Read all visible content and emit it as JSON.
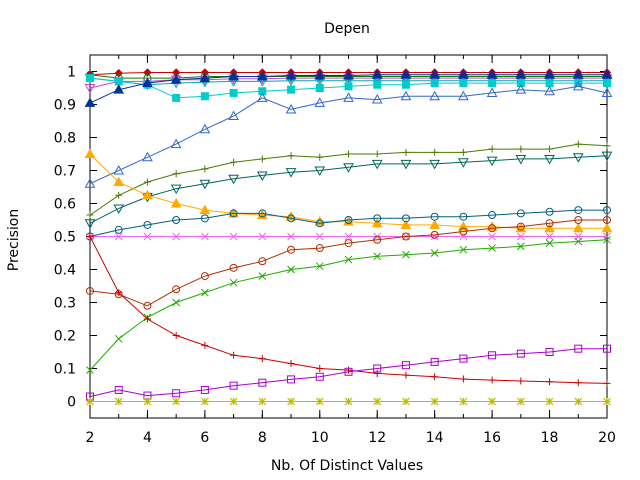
{
  "chart_data": {
    "type": "line",
    "title": "Depen",
    "xlabel": "Nb. Of Distinct Values",
    "ylabel": "Precision",
    "xlim": [
      2,
      20
    ],
    "ylim": [
      -0.05,
      1.05
    ],
    "grid": false,
    "legend": "none",
    "x": [
      2,
      3,
      4,
      5,
      6,
      7,
      8,
      9,
      10,
      11,
      12,
      13,
      14,
      15,
      16,
      17,
      18,
      19,
      20
    ],
    "xticks": [
      2,
      4,
      6,
      8,
      10,
      12,
      14,
      16,
      18,
      20
    ],
    "xtick_labels": [
      "2",
      "4",
      "6",
      "8",
      "10",
      "12",
      "14",
      "16",
      "18",
      "20"
    ],
    "yticks": [
      0,
      0.1,
      0.2,
      0.3,
      0.4,
      0.5,
      0.6,
      0.7,
      0.8,
      0.9,
      1
    ],
    "ytick_labels": [
      "0",
      "0.1",
      "0.2",
      "0.3",
      "0.4",
      "0.5",
      "0.6",
      "0.7",
      "0.8",
      "0.9",
      "1"
    ],
    "series": [
      {
        "color": "#cc0000",
        "marker": "diamond-filled",
        "values": [
          0.99,
          0.995,
          0.997,
          0.997,
          0.997,
          0.997,
          0.997,
          0.997,
          0.997,
          0.997,
          0.997,
          0.997,
          0.997,
          0.997,
          0.997,
          0.997,
          0.997,
          0.997,
          0.997
        ]
      },
      {
        "color": "#008000",
        "marker": "circle",
        "values": [
          0.99,
          0.98,
          0.98,
          0.98,
          0.985,
          0.985,
          0.985,
          0.985,
          0.985,
          0.985,
          0.985,
          0.985,
          0.985,
          0.985,
          0.985,
          0.985,
          0.985,
          0.985,
          0.985
        ]
      },
      {
        "color": "#cc44cc",
        "marker": "triangle-down",
        "values": [
          0.95,
          0.97,
          0.97,
          0.975,
          0.975,
          0.978,
          0.978,
          0.98,
          0.98,
          0.98,
          0.98,
          0.98,
          0.98,
          0.98,
          0.98,
          0.98,
          0.98,
          0.98,
          0.98
        ]
      },
      {
        "color": "#00aaaa",
        "marker": "triangle-down",
        "values": [
          0.98,
          0.97,
          0.96,
          0.965,
          0.968,
          0.97,
          0.97,
          0.972,
          0.972,
          0.972,
          0.972,
          0.972,
          0.972,
          0.972,
          0.972,
          0.972,
          0.972,
          0.972,
          0.972
        ]
      },
      {
        "color": "#00cccc",
        "marker": "square-filled",
        "values": [
          0.98,
          0.97,
          0.96,
          0.92,
          0.925,
          0.935,
          0.94,
          0.945,
          0.95,
          0.955,
          0.96,
          0.96,
          0.965,
          0.965,
          0.965,
          0.965,
          0.965,
          0.965,
          0.965
        ]
      },
      {
        "color": "#003399",
        "marker": "triangle-filled",
        "values": [
          0.905,
          0.945,
          0.965,
          0.975,
          0.98,
          0.985,
          0.985,
          0.988,
          0.988,
          0.988,
          0.99,
          0.99,
          0.99,
          0.99,
          0.99,
          0.99,
          0.99,
          0.99,
          0.99
        ]
      },
      {
        "color": "#3366cc",
        "marker": "triangle",
        "values": [
          0.66,
          0.7,
          0.74,
          0.78,
          0.825,
          0.865,
          0.92,
          0.885,
          0.905,
          0.92,
          0.915,
          0.925,
          0.925,
          0.925,
          0.935,
          0.945,
          0.94,
          0.955,
          0.935
        ]
      },
      {
        "color": "#4b7a00",
        "marker": "plus",
        "values": [
          0.565,
          0.625,
          0.665,
          0.69,
          0.705,
          0.725,
          0.735,
          0.745,
          0.74,
          0.75,
          0.75,
          0.755,
          0.755,
          0.755,
          0.765,
          0.765,
          0.765,
          0.78,
          0.775
        ]
      },
      {
        "color": "#00665a",
        "marker": "triangle-down",
        "values": [
          0.54,
          0.585,
          0.62,
          0.645,
          0.66,
          0.675,
          0.685,
          0.695,
          0.7,
          0.71,
          0.72,
          0.72,
          0.72,
          0.725,
          0.73,
          0.735,
          0.735,
          0.74,
          0.745
        ]
      },
      {
        "color": "#ffaa00",
        "marker": "triangle-filled",
        "values": [
          0.75,
          0.665,
          0.625,
          0.6,
          0.58,
          0.57,
          0.565,
          0.56,
          0.545,
          0.545,
          0.54,
          0.535,
          0.535,
          0.53,
          0.53,
          0.525,
          0.525,
          0.525,
          0.525
        ]
      },
      {
        "color": "#006080",
        "marker": "circle",
        "values": [
          0.5,
          0.52,
          0.535,
          0.55,
          0.555,
          0.57,
          0.57,
          0.555,
          0.54,
          0.55,
          0.555,
          0.555,
          0.56,
          0.56,
          0.565,
          0.57,
          0.575,
          0.58,
          0.58
        ]
      },
      {
        "color": "#ee66ee",
        "marker": "cross",
        "values": [
          0.5,
          0.5,
          0.5,
          0.5,
          0.5,
          0.5,
          0.5,
          0.5,
          0.5,
          0.5,
          0.5,
          0.5,
          0.5,
          0.5,
          0.5,
          0.5,
          0.5,
          0.5,
          0.5
        ]
      },
      {
        "color": "#b03000",
        "marker": "circle",
        "values": [
          0.335,
          0.325,
          0.29,
          0.34,
          0.38,
          0.405,
          0.425,
          0.46,
          0.465,
          0.48,
          0.49,
          0.5,
          0.505,
          0.515,
          0.525,
          0.53,
          0.54,
          0.55,
          0.55
        ]
      },
      {
        "color": "#22aa00",
        "marker": "cross",
        "values": [
          0.095,
          0.19,
          0.255,
          0.3,
          0.33,
          0.36,
          0.38,
          0.4,
          0.41,
          0.43,
          0.44,
          0.445,
          0.45,
          0.46,
          0.465,
          0.47,
          0.48,
          0.485,
          0.49
        ]
      },
      {
        "color": "#cc0000",
        "marker": "plus",
        "values": [
          0.5,
          0.33,
          0.25,
          0.2,
          0.17,
          0.14,
          0.13,
          0.115,
          0.1,
          0.095,
          0.085,
          0.08,
          0.075,
          0.068,
          0.065,
          0.062,
          0.06,
          0.057,
          0.055
        ]
      },
      {
        "color": "#aa00cc",
        "marker": "square",
        "values": [
          0.015,
          0.035,
          0.018,
          0.025,
          0.035,
          0.048,
          0.057,
          0.067,
          0.075,
          0.09,
          0.1,
          0.11,
          0.12,
          0.13,
          0.14,
          0.145,
          0.15,
          0.16,
          0.16
        ]
      },
      {
        "color": "#bbbb00",
        "marker": "asterisk",
        "values": [
          0,
          0,
          0,
          0,
          0,
          0,
          0,
          0,
          0,
          0,
          0,
          0,
          0,
          0,
          0,
          0,
          0,
          0,
          0
        ]
      }
    ]
  }
}
